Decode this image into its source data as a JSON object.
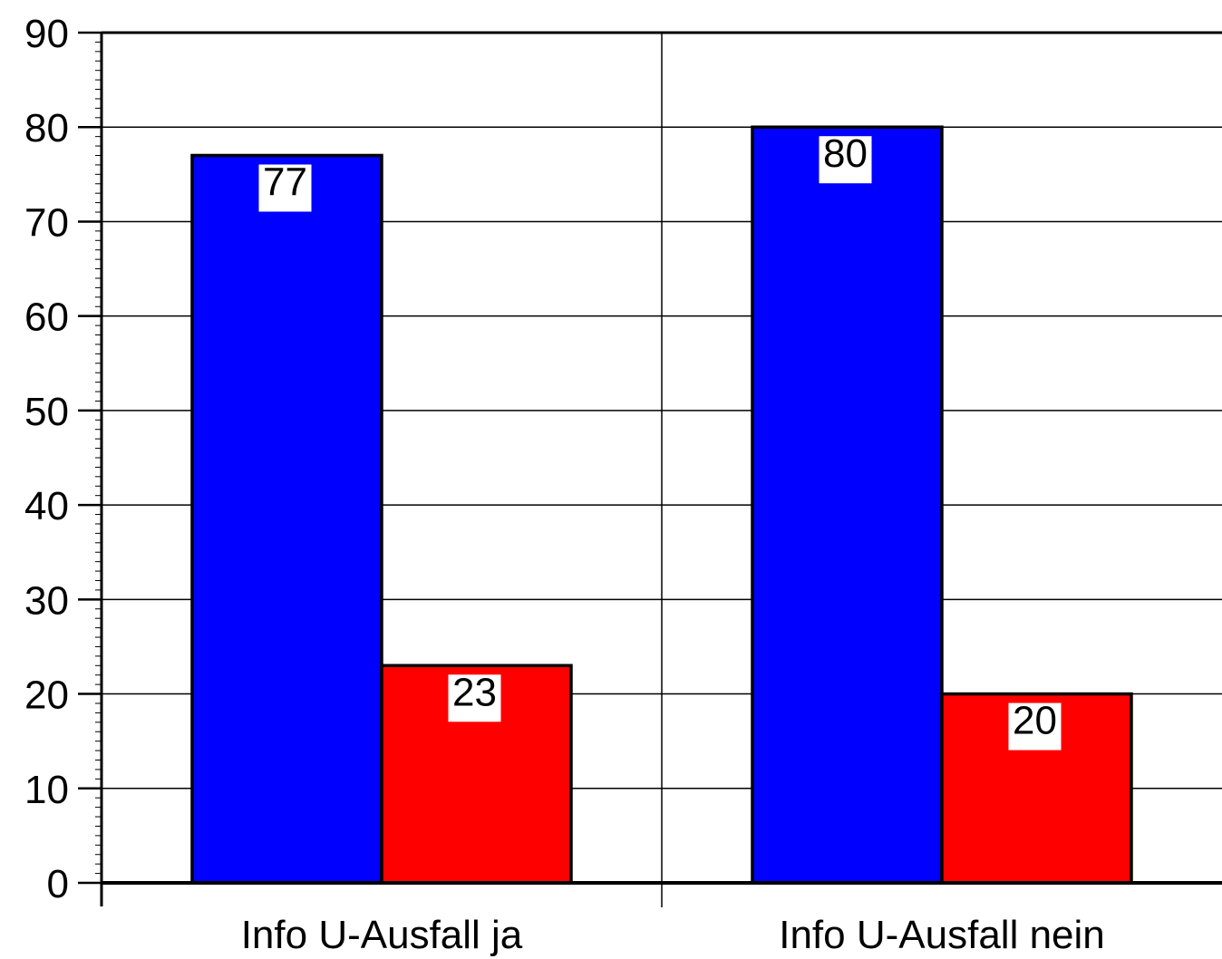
{
  "chart_data": {
    "type": "bar",
    "categories": [
      "Info U-Ausfall ja",
      "Info U-Ausfall nein"
    ],
    "series": [
      {
        "color": "#0000ff",
        "values": [
          77,
          80
        ]
      },
      {
        "color": "#ff0000",
        "values": [
          23,
          20
        ]
      }
    ],
    "ylim": [
      0,
      90
    ],
    "yticks": [
      0,
      10,
      20,
      30,
      40,
      50,
      60,
      70,
      80,
      90
    ],
    "grid": true,
    "data_labels": true,
    "legend": "none"
  }
}
